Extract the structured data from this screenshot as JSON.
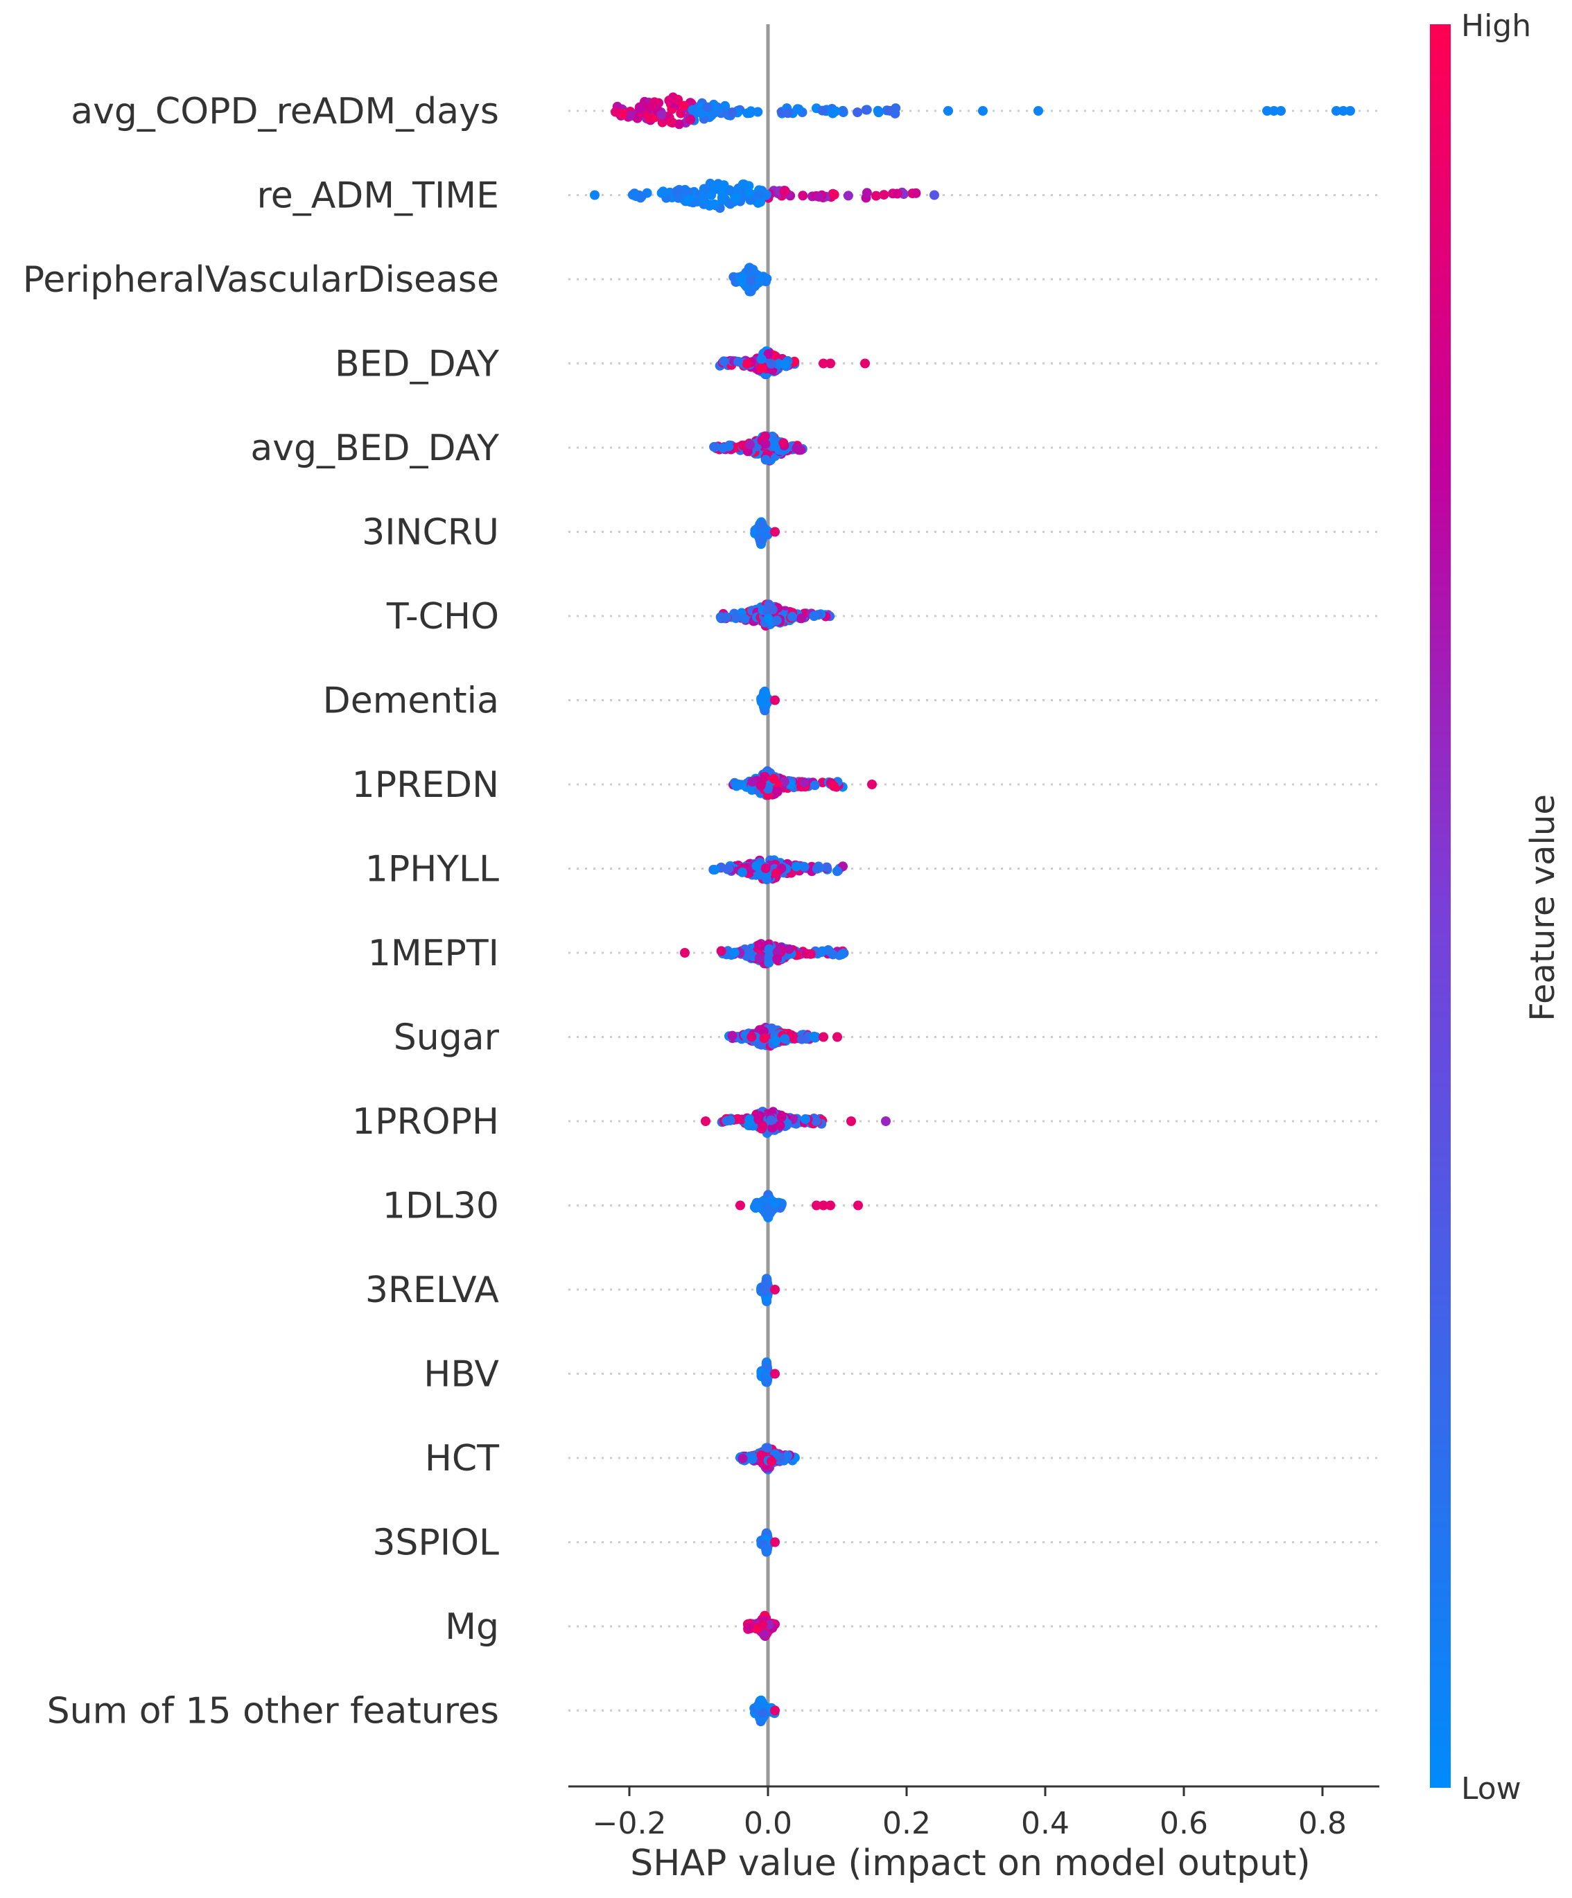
{
  "chart_data": {
    "type": "scatter",
    "subtype": "shap-beeswarm",
    "xlabel": "SHAP value (impact on model output)",
    "xlim": [
      -0.3,
      0.9
    ],
    "xticks": [
      -0.2,
      0.0,
      0.2,
      0.4,
      0.6,
      0.8
    ],
    "xtick_labels": [
      "−0.2",
      "0.0",
      "0.2",
      "0.4",
      "0.6",
      "0.8"
    ],
    "colorbar": {
      "label": "Feature value",
      "high": "High",
      "low": "Low",
      "high_color": "#ff0052",
      "low_color": "#008bfb"
    },
    "features": [
      {
        "name": "avg_COPD_reADM_days",
        "min": -0.24,
        "max": 0.84,
        "core": [
          -0.22,
          0.2
        ],
        "peak": -0.14,
        "spread": 0.42,
        "pattern": "high_neg",
        "outliers": [
          0.26,
          0.31,
          0.39,
          0.72,
          0.73,
          0.74,
          0.82,
          0.83,
          0.84
        ]
      },
      {
        "name": "re_ADM_TIME",
        "min": -0.25,
        "max": 0.24,
        "core": [
          -0.2,
          0.22
        ],
        "peak": -0.06,
        "spread": 0.42,
        "pattern": "low_neg",
        "outliers": [
          -0.25,
          0.24
        ]
      },
      {
        "name": "PeripheralVascularDisease",
        "min": -0.05,
        "max": 0.0,
        "core": [
          -0.05,
          0.0
        ],
        "peak": -0.025,
        "spread": 0.4,
        "pattern": "mostly_low",
        "outliers": []
      },
      {
        "name": "BED_DAY",
        "min": -0.07,
        "max": 0.14,
        "core": [
          -0.07,
          0.04
        ],
        "peak": 0.0,
        "spread": 0.38,
        "pattern": "mixed",
        "outliers": [
          0.08,
          0.09,
          0.14
        ]
      },
      {
        "name": "avg_BED_DAY",
        "min": -0.08,
        "max": 0.05,
        "core": [
          -0.08,
          0.05
        ],
        "peak": 0.0,
        "spread": 0.4,
        "pattern": "mixed",
        "outliers": []
      },
      {
        "name": "3INCRU",
        "min": -0.02,
        "max": 0.01,
        "core": [
          -0.02,
          0.0
        ],
        "peak": -0.01,
        "spread": 0.34,
        "pattern": "mostly_low",
        "outliers": [
          0.01
        ]
      },
      {
        "name": "T-CHO",
        "min": -0.07,
        "max": 0.09,
        "core": [
          -0.07,
          0.09
        ],
        "peak": 0.0,
        "spread": 0.38,
        "pattern": "mixed",
        "outliers": []
      },
      {
        "name": "Dementia",
        "min": -0.01,
        "max": 0.01,
        "core": [
          -0.01,
          0.0
        ],
        "peak": -0.005,
        "spread": 0.34,
        "pattern": "mostly_low",
        "outliers": [
          0.01
        ]
      },
      {
        "name": "1PREDN",
        "min": -0.05,
        "max": 0.15,
        "core": [
          -0.05,
          0.11
        ],
        "peak": 0.0,
        "spread": 0.36,
        "pattern": "mixed",
        "outliers": [
          0.15
        ]
      },
      {
        "name": "1PHYLL",
        "min": -0.08,
        "max": 0.11,
        "core": [
          -0.08,
          0.11
        ],
        "peak": 0.0,
        "spread": 0.34,
        "pattern": "mixed",
        "outliers": []
      },
      {
        "name": "1MEPTI",
        "min": -0.12,
        "max": 0.11,
        "core": [
          -0.07,
          0.11
        ],
        "peak": 0.0,
        "spread": 0.34,
        "pattern": "mixed",
        "outliers": [
          -0.12
        ]
      },
      {
        "name": "Sugar",
        "min": -0.06,
        "max": 0.1,
        "core": [
          -0.06,
          0.07
        ],
        "peak": 0.0,
        "spread": 0.34,
        "pattern": "mixed",
        "outliers": [
          0.08,
          0.1
        ]
      },
      {
        "name": "1PROPH",
        "min": -0.09,
        "max": 0.17,
        "core": [
          -0.07,
          0.09
        ],
        "peak": 0.0,
        "spread": 0.34,
        "pattern": "mixed",
        "outliers": [
          -0.09,
          0.12,
          0.17
        ]
      },
      {
        "name": "1DL30",
        "min": -0.04,
        "max": 0.13,
        "core": [
          -0.02,
          0.02
        ],
        "peak": 0.0,
        "spread": 0.34,
        "pattern": "mostly_low",
        "outliers": [
          -0.04,
          0.07,
          0.08,
          0.09,
          0.13
        ]
      },
      {
        "name": "3RELVA",
        "min": -0.01,
        "max": 0.01,
        "core": [
          -0.01,
          0.0
        ],
        "peak": -0.002,
        "spread": 0.34,
        "pattern": "mostly_low",
        "outliers": [
          0.01
        ]
      },
      {
        "name": "HBV",
        "min": -0.01,
        "max": 0.01,
        "core": [
          -0.01,
          0.0
        ],
        "peak": -0.002,
        "spread": 0.32,
        "pattern": "mostly_low",
        "outliers": [
          0.01
        ]
      },
      {
        "name": "HCT",
        "min": -0.04,
        "max": 0.04,
        "core": [
          -0.04,
          0.04
        ],
        "peak": 0.0,
        "spread": 0.34,
        "pattern": "mixed",
        "outliers": []
      },
      {
        "name": "3SPIOL",
        "min": -0.01,
        "max": 0.01,
        "core": [
          -0.01,
          0.0
        ],
        "peak": -0.002,
        "spread": 0.32,
        "pattern": "mostly_low",
        "outliers": [
          0.01
        ]
      },
      {
        "name": "Mg",
        "min": -0.03,
        "max": 0.01,
        "core": [
          -0.03,
          0.01
        ],
        "peak": -0.005,
        "spread": 0.3,
        "pattern": "high_neg",
        "outliers": []
      },
      {
        "name": "Sum of 15 other features",
        "min": -0.02,
        "max": 0.01,
        "core": [
          -0.02,
          0.01
        ],
        "peak": -0.01,
        "spread": 0.34,
        "pattern": "mostly_low",
        "outliers": [
          0.01
        ]
      }
    ]
  }
}
